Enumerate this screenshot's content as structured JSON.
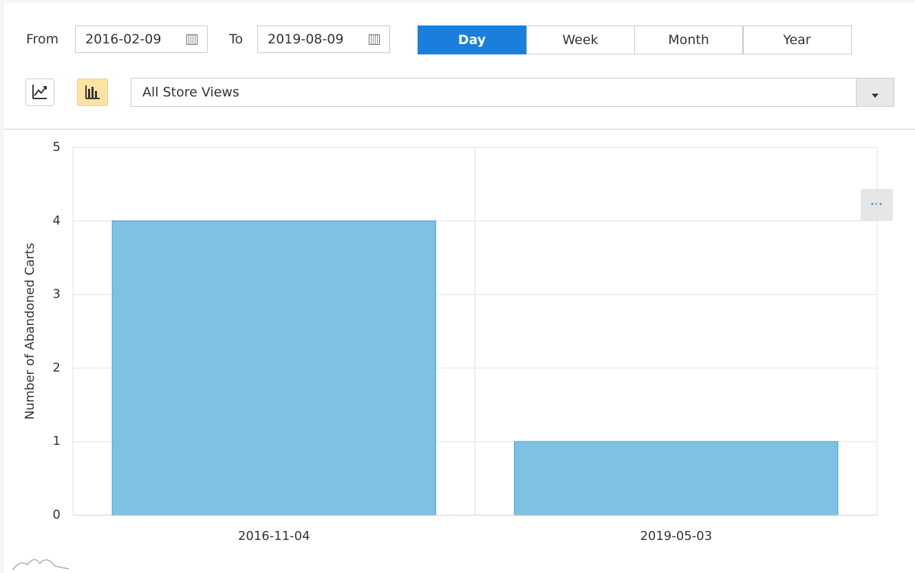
{
  "filters": {
    "from_label": "From",
    "from_value": "2016-02-09",
    "to_label": "To",
    "to_value": "2019-08-09",
    "periods": [
      "Day",
      "Week",
      "Month",
      "Year"
    ],
    "active_period": "Day",
    "store_view": "All Store Views"
  },
  "chart_data": {
    "type": "bar",
    "y_label": "Number of Abandoned Carts",
    "categories": [
      "2016-11-04",
      "2019-05-03"
    ],
    "values": [
      4,
      1
    ],
    "color": "#7fc1e2",
    "ylim": [
      0,
      5
    ],
    "yticks": [
      0,
      1,
      2,
      3,
      4,
      5
    ],
    "grid": true
  }
}
